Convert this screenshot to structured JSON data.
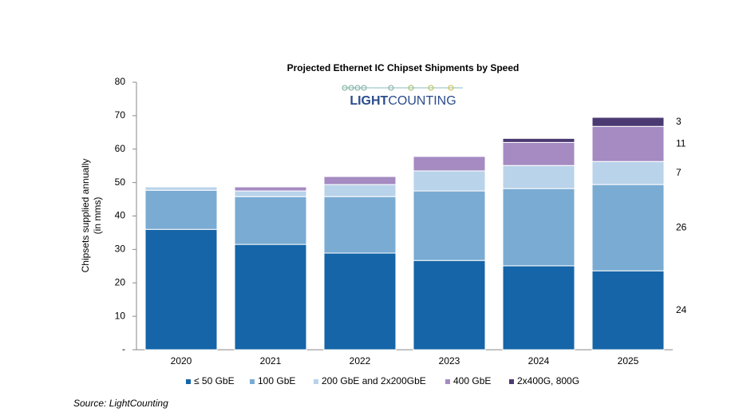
{
  "chart_data": {
    "type": "stacked_bar",
    "title": "Projected Ethernet IC Chipset Shipments by Speed",
    "logo": [
      "LIGHT",
      "COUNTING"
    ],
    "ylabel": [
      "Chipsets supplied annually",
      "(in mms)"
    ],
    "source": "Source: LightCounting",
    "categories": [
      "2020",
      "2021",
      "2022",
      "2023",
      "2024",
      "2025"
    ],
    "ylim": [
      0,
      80
    ],
    "yticks": [
      {
        "value": 0,
        "label": "-"
      },
      10,
      20,
      30,
      40,
      50,
      60,
      70,
      80
    ],
    "series": [
      {
        "name": "≤ 50 GbE",
        "color": "#1565a8",
        "values": [
          36,
          31.5,
          28.9,
          26.7,
          25.1,
          23.6
        ],
        "value_labels": [
          null,
          null,
          null,
          null,
          null,
          "24"
        ]
      },
      {
        "name": "100 GbE",
        "color": "#7aabd2",
        "values": [
          11.7,
          14.3,
          16.9,
          20.8,
          23.1,
          25.8
        ],
        "value_labels": [
          null,
          null,
          null,
          null,
          null,
          "26"
        ]
      },
      {
        "name": "200 GbE and 2x200GbE",
        "color": "#b9d3ea",
        "values": [
          1,
          1.7,
          3.6,
          6,
          6.9,
          6.9
        ],
        "value_labels": [
          null,
          null,
          null,
          null,
          null,
          "7"
        ]
      },
      {
        "name": "400 GbE",
        "color": "#a58bc2",
        "values": [
          0,
          1.2,
          2.4,
          4.3,
          6.9,
          10.5
        ],
        "value_labels": [
          null,
          null,
          null,
          null,
          null,
          "11"
        ]
      },
      {
        "name": "2x400G, 800G",
        "color": "#4b3a72",
        "values": [
          0,
          0,
          0,
          0,
          1.2,
          2.7
        ],
        "value_labels": [
          null,
          null,
          null,
          null,
          null,
          "3"
        ]
      }
    ]
  }
}
